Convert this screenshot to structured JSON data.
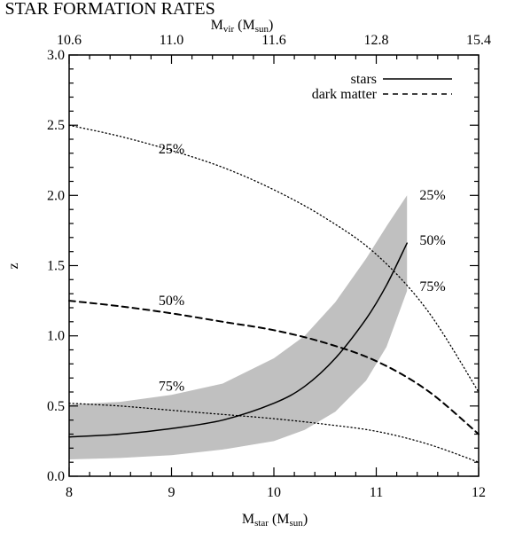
{
  "chart_data": {
    "type": "line",
    "title": "O STAR FORMATION RATES",
    "xlabel": {
      "main": "M",
      "sub": "star",
      "tail": " (M",
      "sub2": "sun",
      "end": ")"
    },
    "ylabel": "z",
    "toplabel": {
      "main": "M",
      "sub": "vir",
      "tail": " (M",
      "sub2": "sun",
      "end": ")"
    },
    "xlim": [
      8,
      12
    ],
    "ylim": [
      0,
      3
    ],
    "xticks": [
      8,
      9,
      10,
      11,
      12
    ],
    "xtick_labels": [
      "8",
      "9",
      "10",
      "11",
      "12"
    ],
    "yticks": [
      0,
      0.5,
      1,
      1.5,
      2,
      2.5,
      3
    ],
    "ytick_labels": [
      "0.0",
      "0.5",
      "1.0",
      "1.5",
      "2.0",
      "2.5",
      "3.0"
    ],
    "top_ticks": [
      8,
      9,
      10,
      11,
      12
    ],
    "top_tick_labels": [
      "10.6",
      "11.0",
      "11.6",
      "12.8",
      "15.4"
    ],
    "grid": false,
    "legend": {
      "position": "top-right",
      "entries": [
        {
          "label": "stars",
          "style": "solid"
        },
        {
          "label": "dark matter",
          "style": "dashed"
        }
      ]
    },
    "band": {
      "name": "stars range",
      "color": "#c0c0c0",
      "x": [
        8.0,
        8.5,
        9.0,
        9.5,
        10.0,
        10.3,
        10.6,
        10.9,
        11.1,
        11.3
      ],
      "lower": [
        0.12,
        0.13,
        0.15,
        0.19,
        0.25,
        0.33,
        0.46,
        0.68,
        0.92,
        1.32
      ],
      "upper": [
        0.51,
        0.53,
        0.58,
        0.66,
        0.84,
        1.0,
        1.24,
        1.55,
        1.78,
        2.0
      ]
    },
    "series": [
      {
        "style": "solid",
        "x": [
          8.0,
          8.5,
          9.0,
          9.5,
          10.0,
          10.3,
          10.6,
          10.9,
          11.1,
          11.3
        ],
        "y": [
          0.28,
          0.3,
          0.34,
          0.4,
          0.52,
          0.64,
          0.84,
          1.12,
          1.36,
          1.66
        ]
      },
      {
        "style": "dashed",
        "x": [
          8.0,
          8.5,
          9.0,
          9.5,
          10.0,
          10.5,
          11.0,
          11.5,
          12.0
        ],
        "y": [
          1.25,
          1.21,
          1.16,
          1.1,
          1.04,
          0.95,
          0.82,
          0.61,
          0.3
        ]
      },
      {
        "style": "dotted",
        "x": [
          8.0,
          8.5,
          9.0,
          9.5,
          10.0,
          10.5,
          11.0,
          11.5,
          12.0
        ],
        "y": [
          2.5,
          2.42,
          2.32,
          2.2,
          2.04,
          1.84,
          1.58,
          1.18,
          0.6
        ]
      },
      {
        "style": "dotted",
        "x": [
          8.0,
          8.5,
          9.0,
          9.5,
          10.0,
          10.5,
          11.0,
          11.5,
          12.0
        ],
        "y": [
          0.52,
          0.5,
          0.47,
          0.44,
          0.41,
          0.37,
          0.32,
          0.23,
          0.1
        ]
      }
    ],
    "annotations": [
      {
        "text": "25%",
        "x": 9.0,
        "y": 2.3
      },
      {
        "text": "50%",
        "x": 9.0,
        "y": 1.22
      },
      {
        "text": "75%",
        "x": 9.0,
        "y": 0.61
      },
      {
        "text": "25%",
        "x": 11.55,
        "y": 1.97
      },
      {
        "text": "50%",
        "x": 11.55,
        "y": 1.65
      },
      {
        "text": "75%",
        "x": 11.55,
        "y": 1.32
      }
    ]
  }
}
